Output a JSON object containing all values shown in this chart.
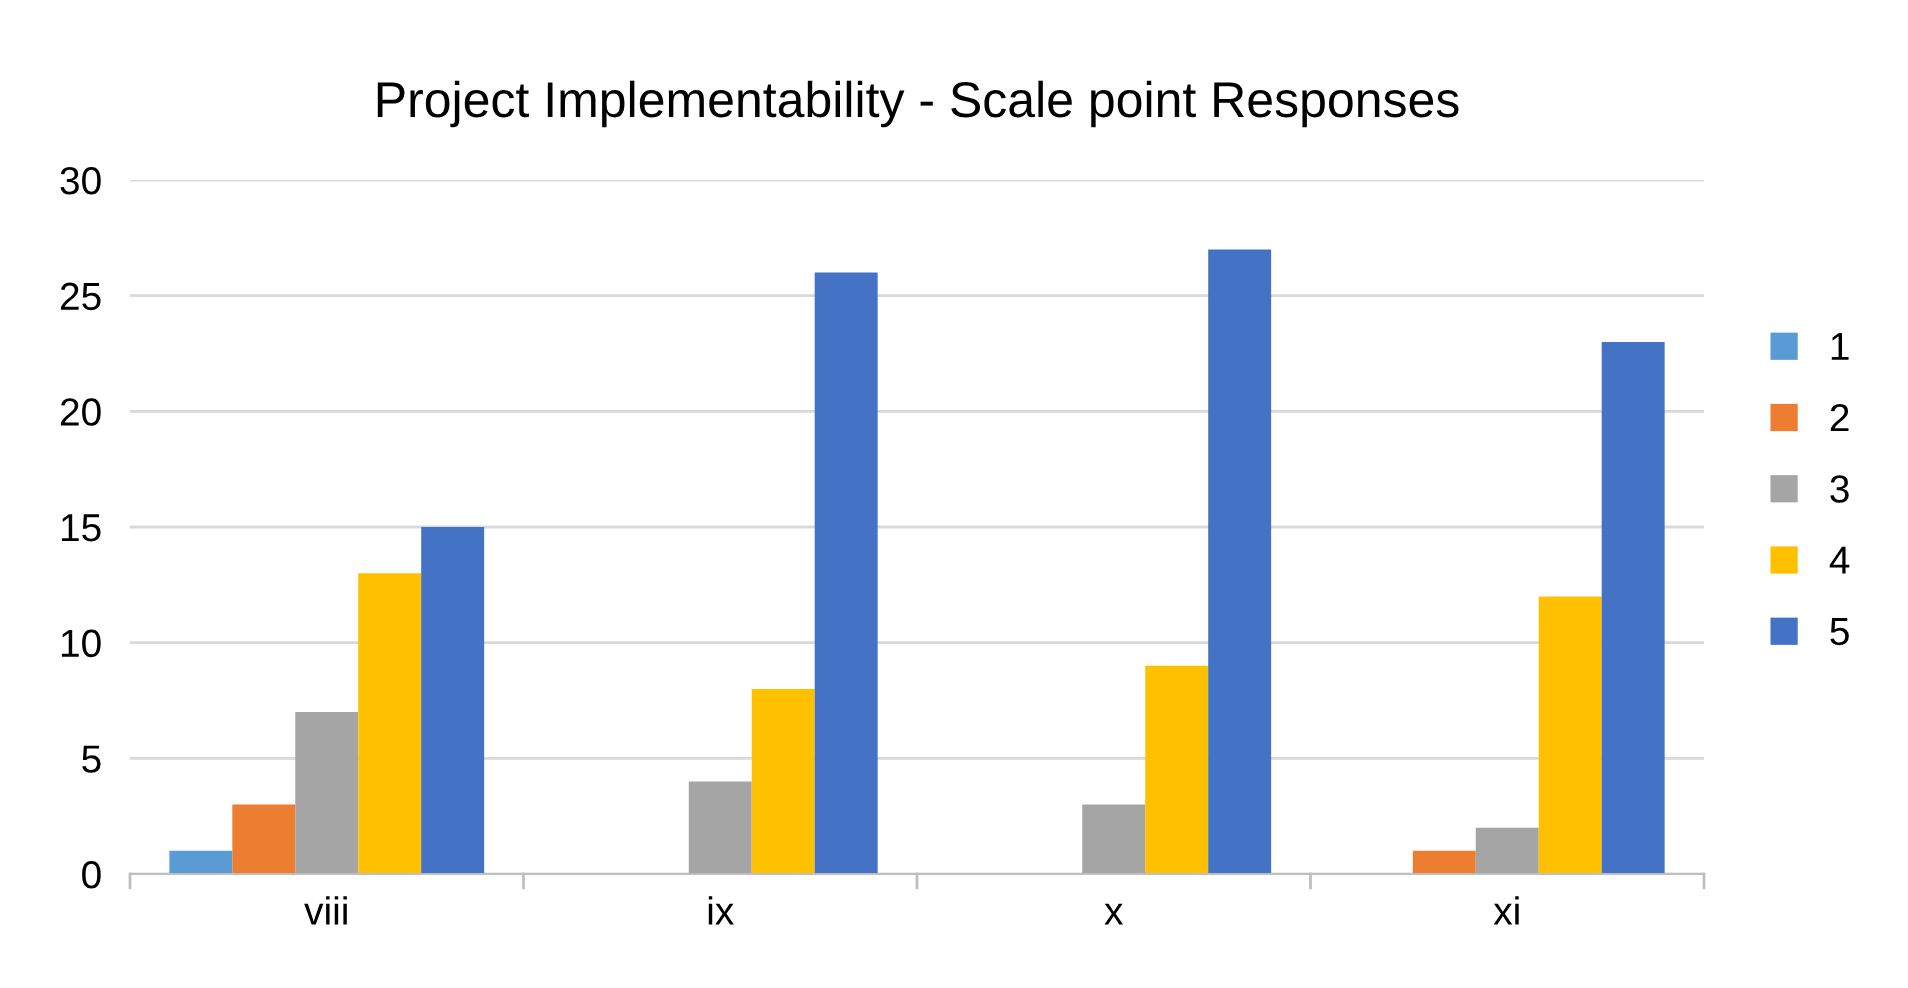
{
  "chart_data": {
    "type": "bar",
    "title": "Project Implementability - Scale point Responses",
    "categories": [
      "viii",
      "ix",
      "x",
      "xi"
    ],
    "series": [
      {
        "name": "1",
        "color": "#5b9bd5",
        "values": [
          1,
          0,
          0,
          0
        ]
      },
      {
        "name": "2",
        "color": "#ed7d31",
        "values": [
          3,
          0,
          0,
          1
        ]
      },
      {
        "name": "3",
        "color": "#a5a5a5",
        "values": [
          7,
          4,
          3,
          2
        ]
      },
      {
        "name": "4",
        "color": "#ffc000",
        "values": [
          13,
          8,
          9,
          12
        ]
      },
      {
        "name": "5",
        "color": "#4472c4",
        "values": [
          15,
          26,
          27,
          23
        ]
      }
    ],
    "ylim": [
      0,
      30
    ],
    "yticks": [
      0,
      5,
      10,
      15,
      20,
      25,
      30
    ],
    "grid": "y",
    "legend": "right"
  }
}
